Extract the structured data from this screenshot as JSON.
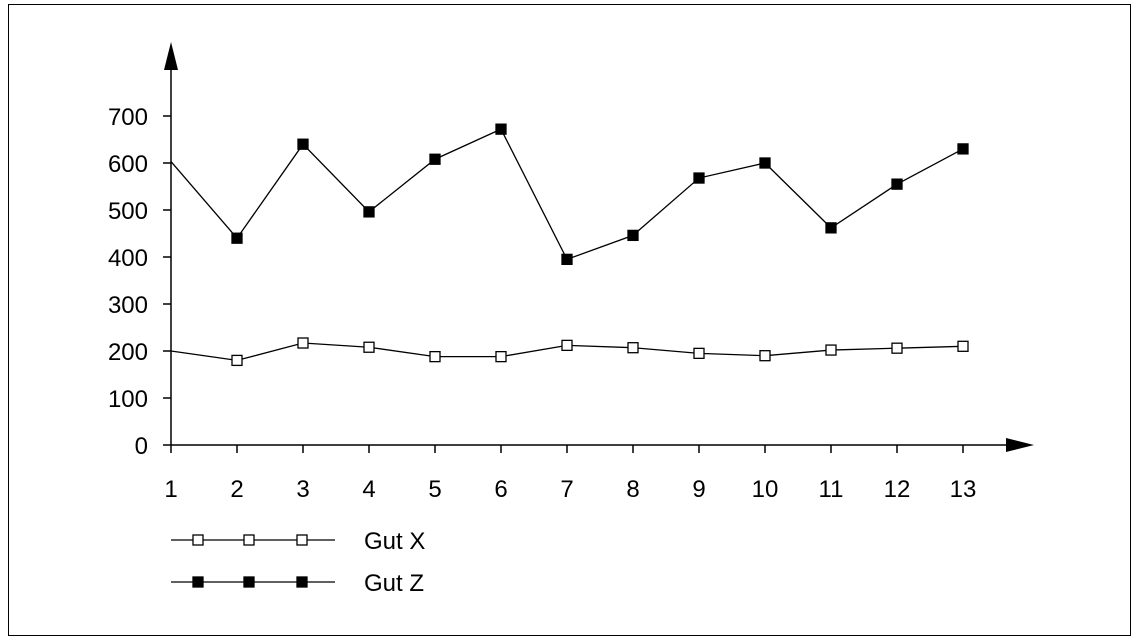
{
  "chart_data": {
    "type": "line",
    "x": [
      1,
      2,
      3,
      4,
      5,
      6,
      7,
      8,
      9,
      10,
      11,
      12,
      13
    ],
    "ylim": [
      0,
      700
    ],
    "y_ticks": [
      0,
      100,
      200,
      300,
      400,
      500,
      600,
      700
    ],
    "x_ticks": [
      "1",
      "2",
      "3",
      "4",
      "5",
      "6",
      "7",
      "8",
      "9",
      "10",
      "11",
      "12",
      "13"
    ],
    "grid": false,
    "legend_position": "bottom-left",
    "series": [
      {
        "name": "Gut X",
        "marker": "open-square",
        "color": "#000000",
        "values": [
          200,
          180,
          217,
          208,
          188,
          188,
          212,
          207,
          195,
          190,
          202,
          206,
          210
        ]
      },
      {
        "name": "Gut Z",
        "marker": "filled-square",
        "color": "#000000",
        "values": [
          603,
          440,
          640,
          496,
          608,
          672,
          395,
          446,
          568,
          600,
          462,
          555,
          630
        ]
      }
    ]
  }
}
